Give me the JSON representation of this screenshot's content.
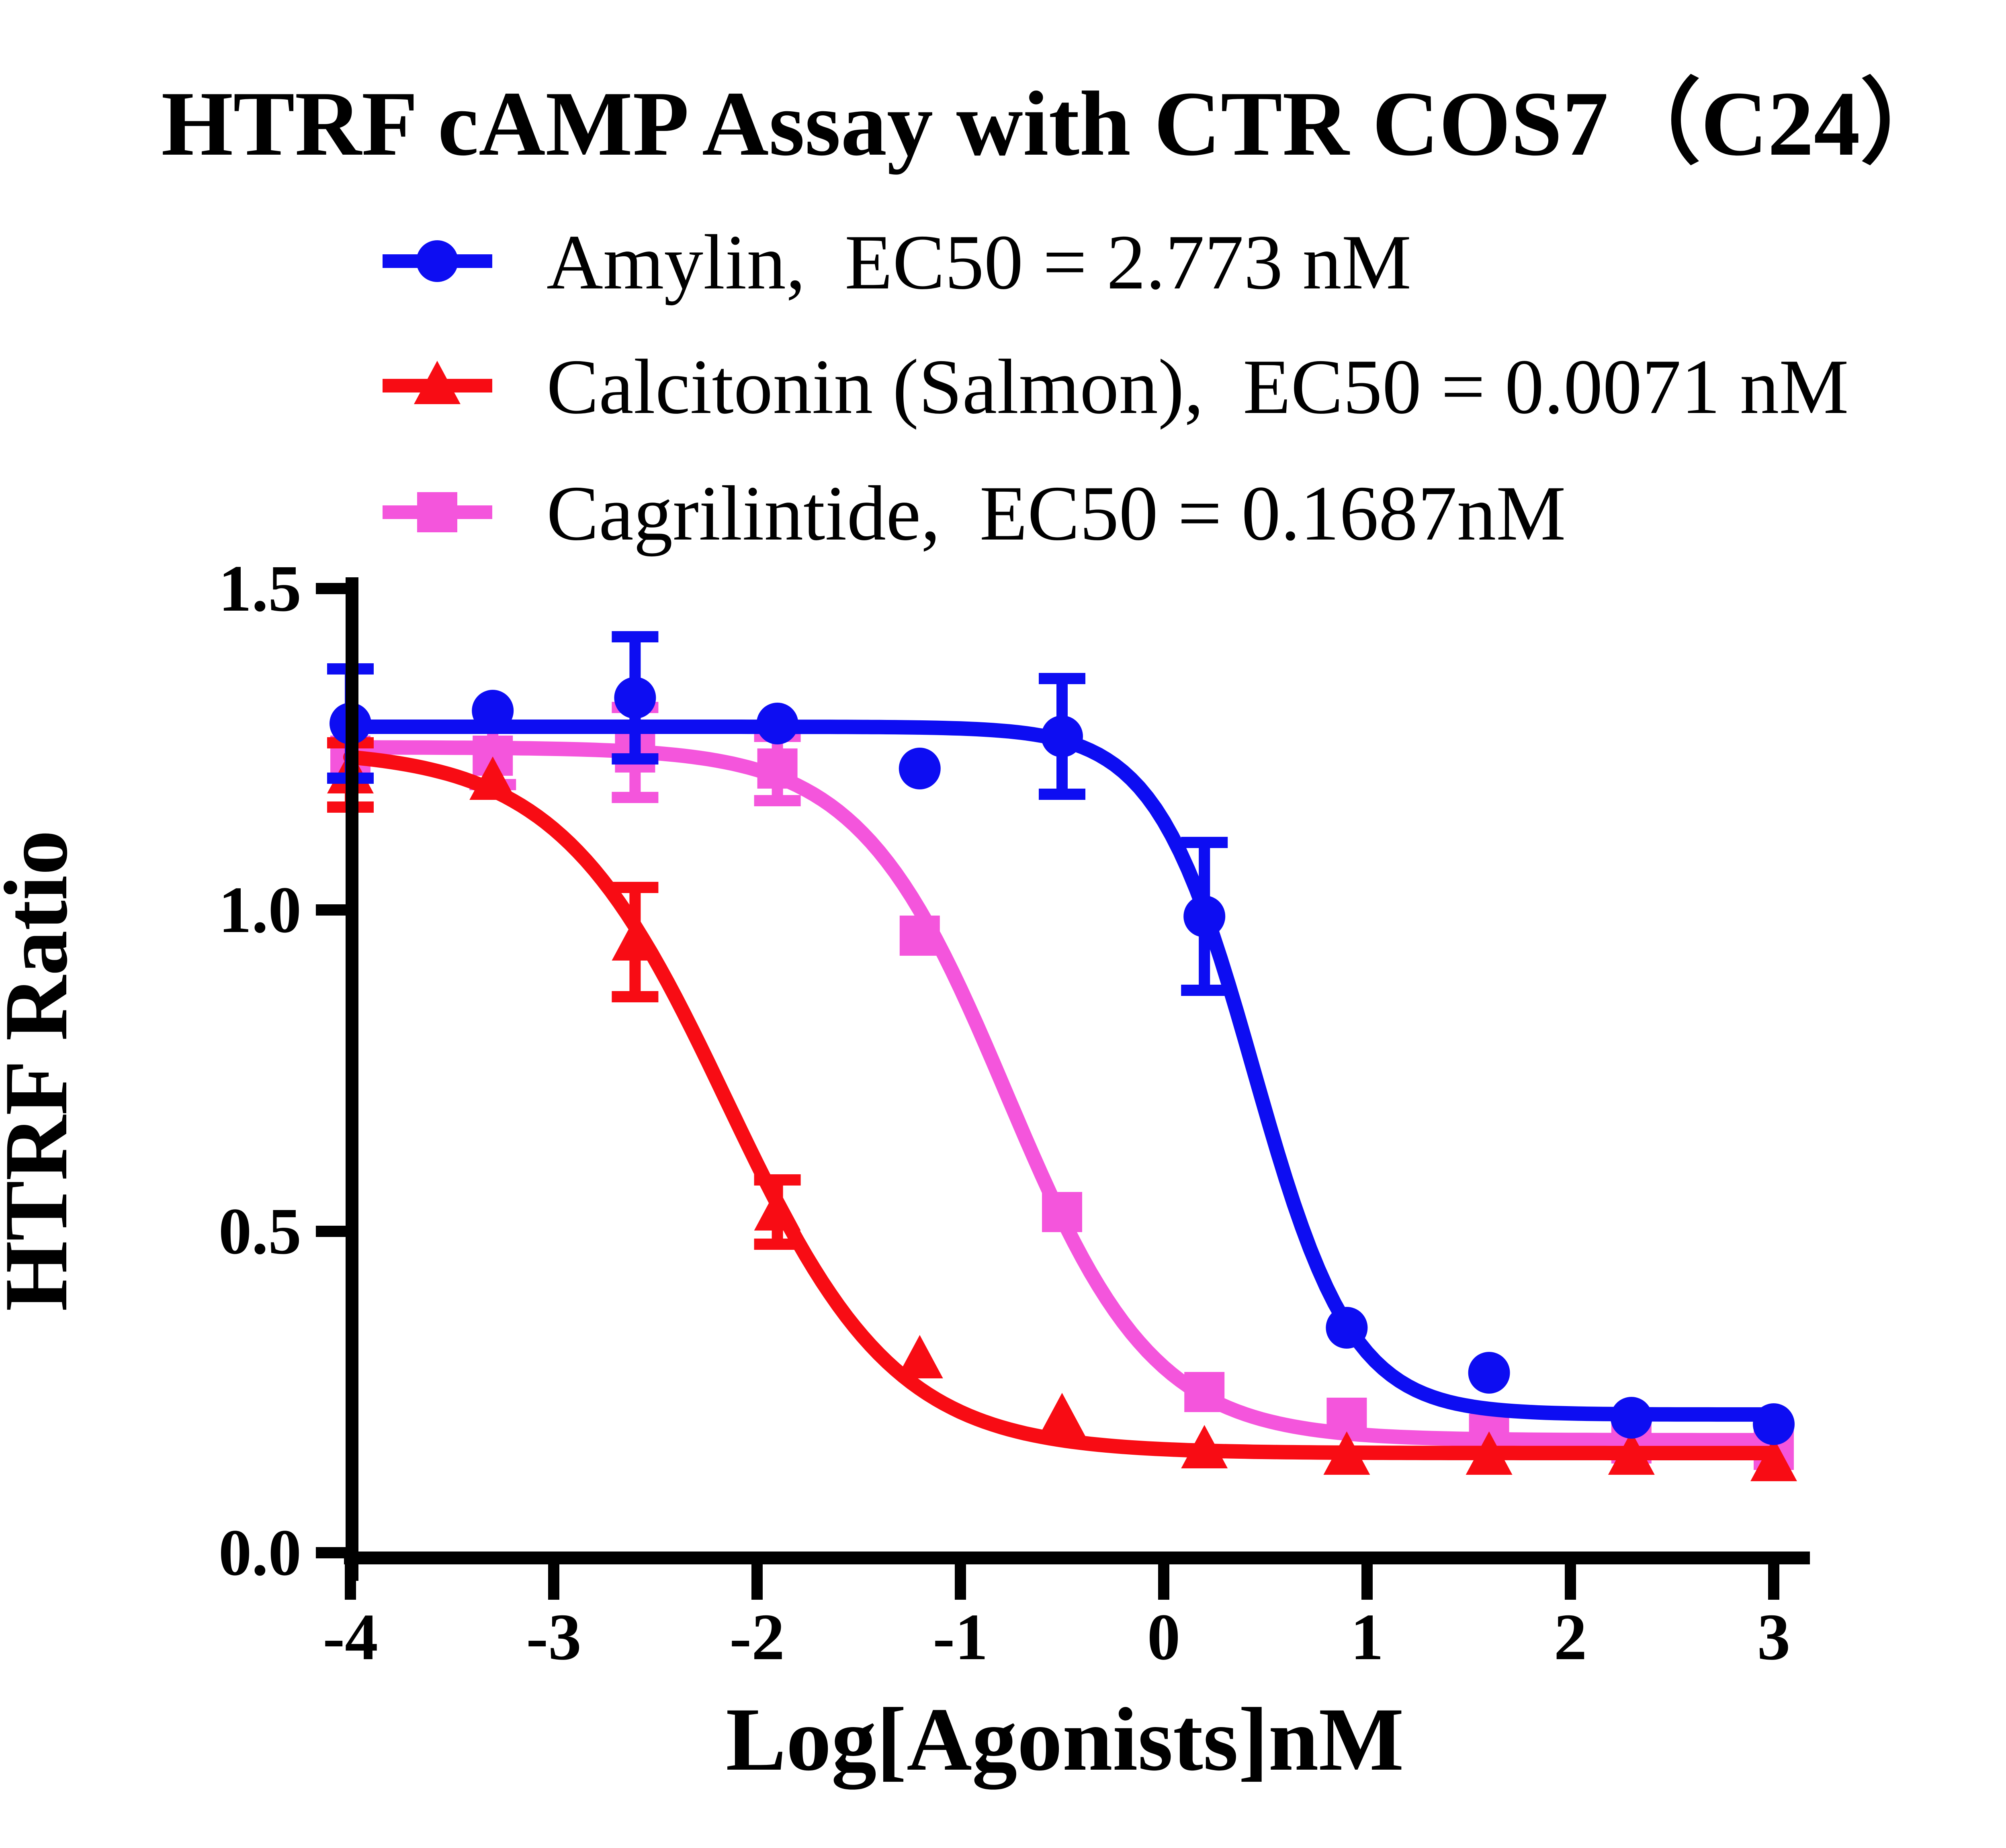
{
  "page": {
    "background": "#ffffff",
    "text_color": "#000000",
    "axis_color": "#000000"
  },
  "chart_data": {
    "type": "scatter",
    "subtype": "dose-response-curves-with-error-bars",
    "title": "HTRF cAMP Assay with CTR COS7（C24）",
    "xlabel": "Log[Agonists]nM",
    "ylabel": "HTRF Ratio",
    "xlim": [
      -4,
      3
    ],
    "ylim": [
      0,
      1.5
    ],
    "grid": false,
    "legend_position": "top-left",
    "x_tick_values": [
      -4,
      -3,
      -2,
      -1,
      0,
      1,
      2,
      3
    ],
    "x_tick_labels": [
      "-4",
      "-3",
      "-2",
      "-1",
      "0",
      "1",
      "2",
      "3"
    ],
    "y_tick_values": [
      0,
      0.5,
      1.0,
      1.5
    ],
    "y_tick_labels": [
      "0.0",
      "0.5",
      "1.0",
      "1.5"
    ],
    "x": [
      -4,
      -3.3,
      -2.6,
      -1.9,
      -1.2,
      -0.5,
      0.2,
      0.9,
      1.6,
      2.3,
      3
    ],
    "series": [
      {
        "name": "Amylin",
        "legend_label": "Amylin,  EC50 = 2.773 nM",
        "ec50_nM": 2.773,
        "color": "#0D0DF2",
        "marker": "circle",
        "values": [
          1.29,
          1.31,
          1.33,
          1.29,
          1.22,
          1.27,
          0.99,
          0.35,
          0.28,
          0.21,
          0.2
        ],
        "errors": [
          0.085,
          null,
          0.095,
          null,
          null,
          0.09,
          0.115,
          null,
          null,
          null,
          null
        ],
        "fit": {
          "top": 1.285,
          "bottom": 0.215,
          "log_ec50": 0.443,
          "hill": 1.8
        }
      },
      {
        "name": "Calcitonin (Salmon)",
        "legend_label": "Calcitonin (Salmon),  EC50 = 0.0071 nM",
        "ec50_nM": 0.0071,
        "color": "#F80C14",
        "marker": "triangle",
        "values": [
          1.21,
          1.2,
          0.95,
          0.53,
          0.3,
          0.21,
          0.16,
          0.15,
          0.15,
          0.15,
          0.14
        ],
        "errors": [
          0.05,
          null,
          0.085,
          0.05,
          null,
          null,
          null,
          null,
          null,
          null,
          null
        ],
        "fit": {
          "top": 1.25,
          "bottom": 0.155,
          "log_ec50": -2.149,
          "hill": 1.05
        }
      },
      {
        "name": "Cagrilintide",
        "legend_label": "Cagrilintide,  EC50 = 0.1687nM",
        "ec50_nM": 0.1687,
        "color": "#F455DC",
        "marker": "square",
        "values": [
          1.24,
          1.24,
          1.245,
          1.22,
          0.96,
          0.53,
          0.25,
          0.21,
          0.185,
          0.17,
          0.16
        ],
        "errors": [
          null,
          0.045,
          0.07,
          0.05,
          null,
          null,
          null,
          null,
          null,
          null,
          null
        ],
        "fit": {
          "top": 1.253,
          "bottom": 0.175,
          "log_ec50": -0.773,
          "hill": 1.2
        }
      }
    ]
  }
}
